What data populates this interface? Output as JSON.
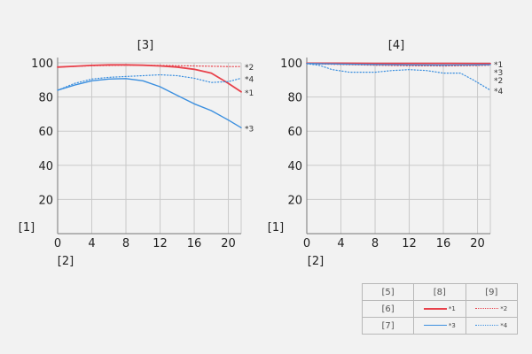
{
  "colors": {
    "red": "#e8414b",
    "blue": "#3b8fdf",
    "grid": "#c9c9c9",
    "axis": "#777777"
  },
  "y_axis_label": "[1]",
  "x_axis_label": "[2]",
  "legend": {
    "header": [
      "[5]",
      "[8]",
      "[9]"
    ],
    "rows": [
      {
        "label": "[6]",
        "solid": "*1",
        "dotted": "*2",
        "color": "#e8414b"
      },
      {
        "label": "[7]",
        "solid": "*3",
        "dotted": "*4",
        "color": "#3b8fdf"
      }
    ]
  },
  "chart_data": [
    {
      "type": "line",
      "title": "[3]",
      "xlabel": "[2]",
      "ylabel": "[1]",
      "xlim": [
        0,
        21.5
      ],
      "ylim": [
        0,
        100
      ],
      "xticks": [
        0,
        4,
        8,
        12,
        16,
        20
      ],
      "yticks": [
        20,
        40,
        60,
        80,
        100
      ],
      "grid": true,
      "series": [
        {
          "name": "*1",
          "color": "#e8414b",
          "style": "solid",
          "x": [
            0,
            2,
            4,
            6,
            8,
            10,
            12,
            14,
            16,
            18,
            20,
            21.5
          ],
          "y": [
            97.5,
            98,
            98.5,
            98.8,
            98.8,
            98.6,
            98.2,
            97.5,
            96.2,
            94,
            88,
            83
          ]
        },
        {
          "name": "*2",
          "color": "#e8414b",
          "style": "dotted",
          "x": [
            0,
            4,
            8,
            12,
            16,
            20,
            21.5
          ],
          "y": [
            97.5,
            98.3,
            98.6,
            98.5,
            98.2,
            97.8,
            97.8
          ]
        },
        {
          "name": "*3",
          "color": "#3b8fdf",
          "style": "solid",
          "x": [
            0,
            2,
            4,
            6,
            8,
            10,
            12,
            14,
            16,
            18,
            20,
            21.5
          ],
          "y": [
            84,
            87,
            89.5,
            90.5,
            90.8,
            89.5,
            86,
            81,
            76,
            72,
            66.5,
            62
          ]
        },
        {
          "name": "*4",
          "color": "#3b8fdf",
          "style": "dotted",
          "x": [
            0,
            2,
            4,
            6,
            8,
            10,
            12,
            14,
            16,
            18,
            20,
            21.5
          ],
          "y": [
            84,
            88,
            90.5,
            91.5,
            92,
            92.5,
            93,
            92.5,
            91,
            88.5,
            89,
            91
          ]
        }
      ]
    },
    {
      "type": "line",
      "title": "[4]",
      "xlabel": "[2]",
      "ylabel": "[1]",
      "xlim": [
        0,
        21.5
      ],
      "ylim": [
        0,
        100
      ],
      "xticks": [
        0,
        4,
        8,
        12,
        16,
        20
      ],
      "yticks": [
        20,
        40,
        60,
        80,
        100
      ],
      "grid": true,
      "series": [
        {
          "name": "*1",
          "color": "#e8414b",
          "style": "solid",
          "x": [
            0,
            4,
            8,
            12,
            16,
            20,
            21.5
          ],
          "y": [
            99.8,
            99.8,
            99.7,
            99.7,
            99.7,
            99.6,
            99.6
          ]
        },
        {
          "name": "*2",
          "color": "#e8414b",
          "style": "dotted",
          "x": [
            0,
            4,
            8,
            12,
            16,
            20,
            21.5
          ],
          "y": [
            99.5,
            99,
            98.6,
            98.3,
            98.2,
            98.4,
            98.6
          ]
        },
        {
          "name": "*3",
          "color": "#3b8fdf",
          "style": "solid",
          "x": [
            0,
            4,
            8,
            12,
            16,
            20,
            21.5
          ],
          "y": [
            99.6,
            99.3,
            99,
            98.8,
            98.7,
            98.8,
            98.9
          ]
        },
        {
          "name": "*4",
          "color": "#3b8fdf",
          "style": "dotted",
          "x": [
            0,
            1.5,
            3,
            5,
            8,
            10,
            12,
            14,
            16,
            18,
            19.5,
            21.5
          ],
          "y": [
            99.5,
            98.5,
            96,
            94.5,
            94.5,
            95.5,
            96,
            95.5,
            94,
            94,
            90,
            84
          ]
        }
      ]
    }
  ]
}
